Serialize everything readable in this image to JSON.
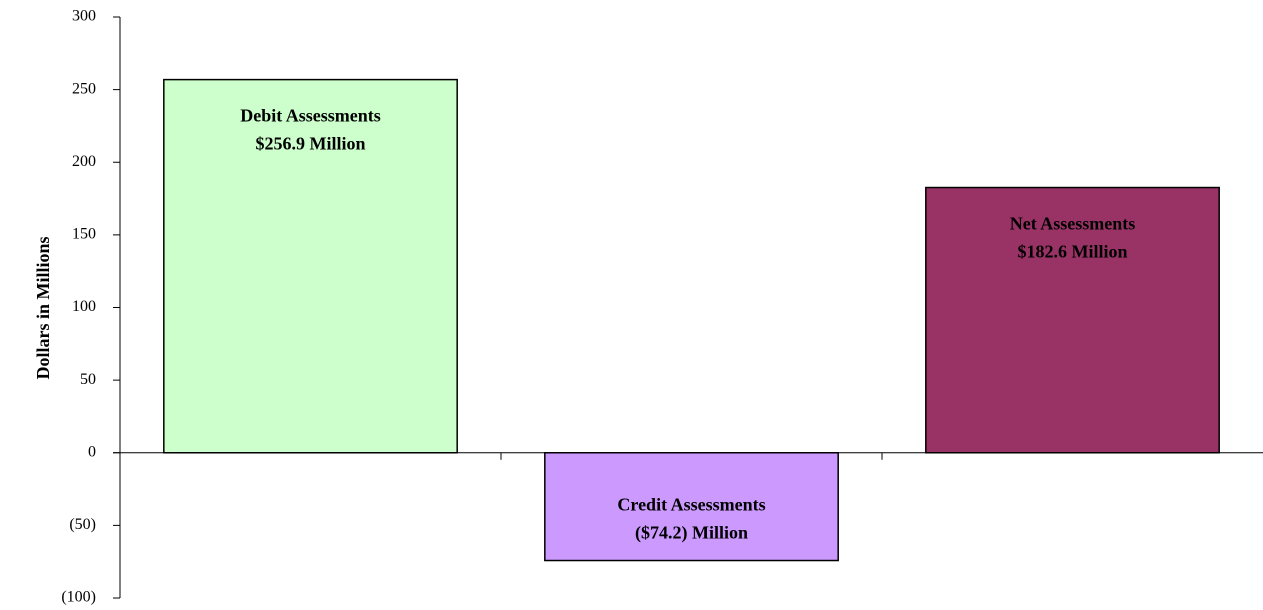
{
  "chart_data": {
    "type": "bar",
    "ylabel": "Dollars in Millions",
    "categories": [
      "Debit Assessments",
      "Credit Assessments",
      "Net Assessments"
    ],
    "values": [
      256.9,
      -74.2,
      182.6
    ],
    "value_labels": [
      "$256.9 Million",
      "($74.2) Million",
      "$182.6 Million"
    ],
    "colors": [
      "#ccffcc",
      "#cc99ff",
      "#993366"
    ],
    "ylim": [
      -100,
      300
    ],
    "yticks": [
      {
        "value": -100,
        "label": "(100)"
      },
      {
        "value": -50,
        "label": "(50)"
      },
      0,
      50,
      100,
      150,
      200,
      250,
      300
    ],
    "grid": false
  }
}
